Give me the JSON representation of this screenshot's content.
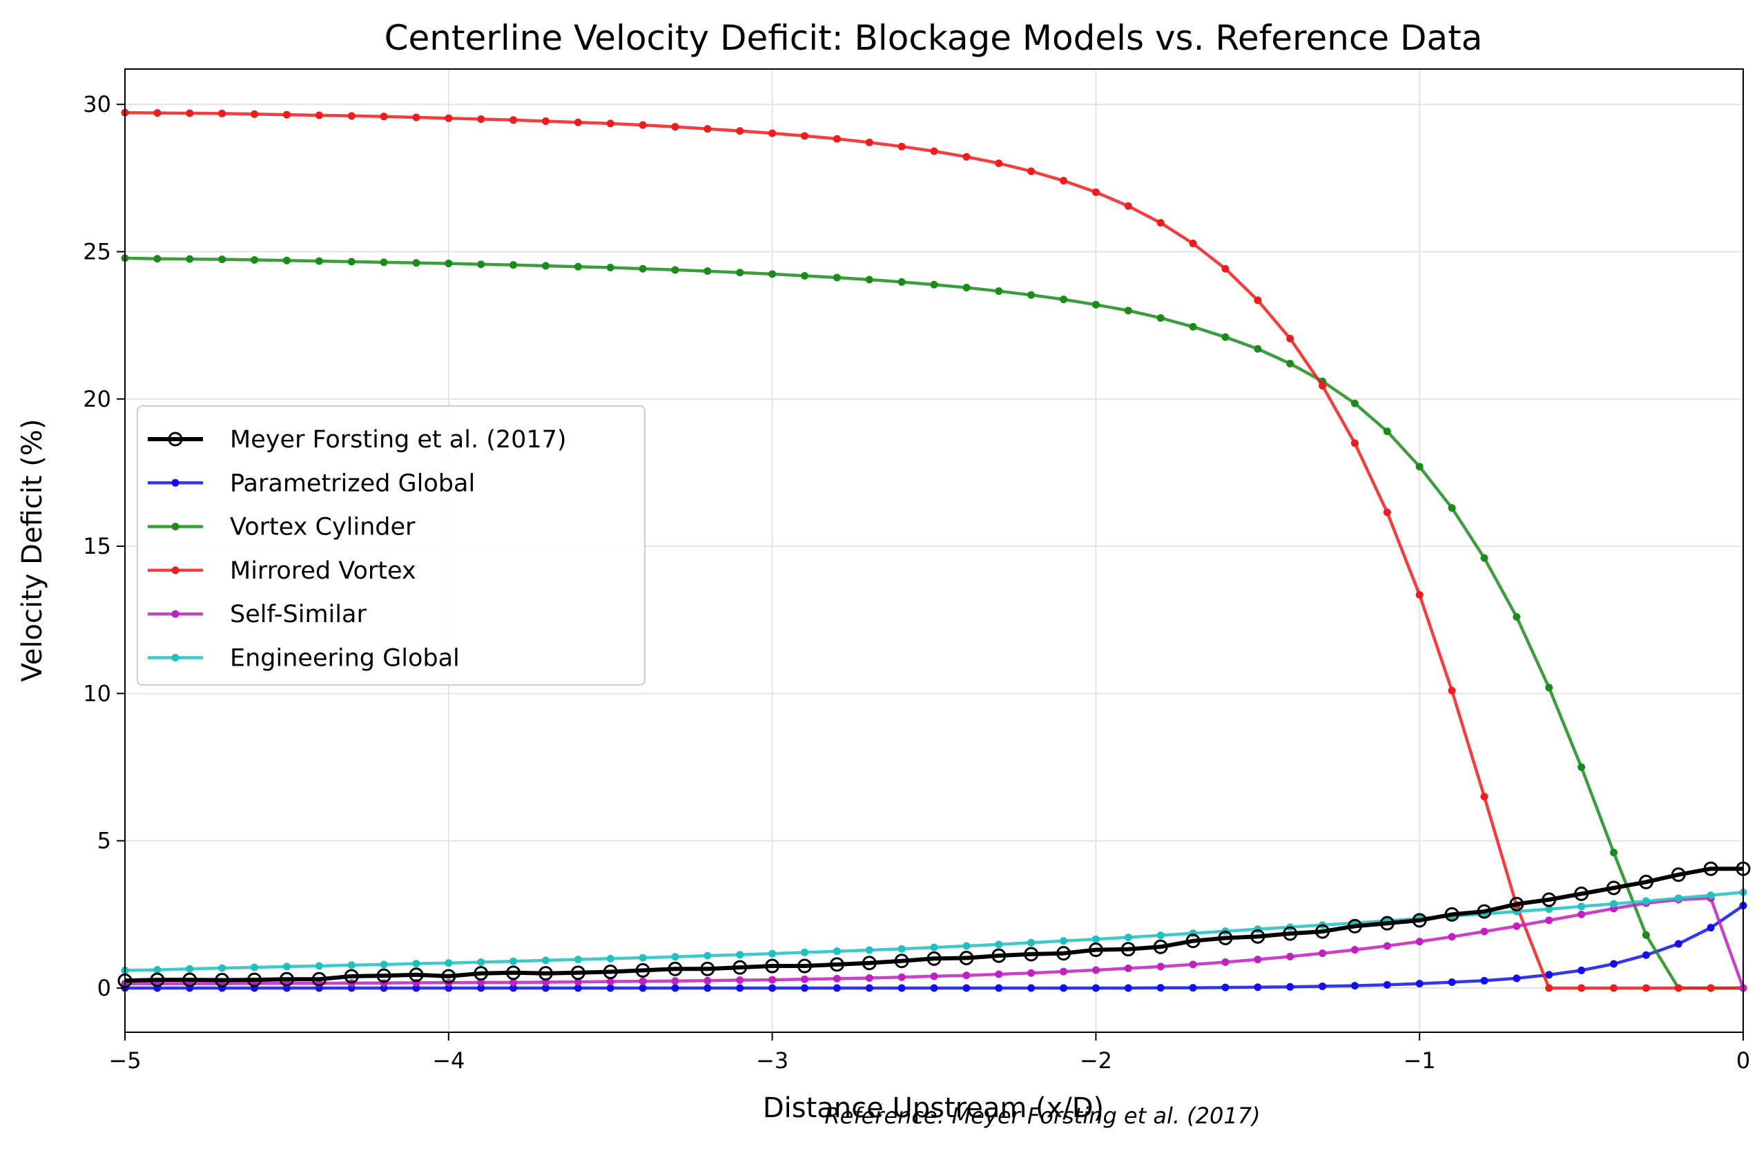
{
  "chart_data": {
    "type": "line",
    "title": "Centerline Velocity Deficit: Blockage Models vs. Reference Data",
    "xlabel": "Distance Upstream (x/D)",
    "ylabel": "Velocity Deficit (%)",
    "xlim": [
      -5,
      0
    ],
    "ylim": [
      -1.5,
      31.2
    ],
    "xticks": [
      -5,
      -4,
      -3,
      -2,
      -1,
      0
    ],
    "xtick_labels": [
      "−5",
      "−4",
      "−3",
      "−2",
      "−1",
      "0"
    ],
    "yticks": [
      0,
      5,
      10,
      15,
      20,
      25,
      30
    ],
    "ytick_labels": [
      "0",
      "5",
      "10",
      "15",
      "20",
      "25",
      "30"
    ],
    "grid": true,
    "legend_position": "center-left",
    "annotation": "Reference: Meyer Forsting et al. (2017)",
    "series": [
      {
        "name": "Meyer Forsting et al. (2017)",
        "color": "#000000",
        "marker": "open-circle",
        "x": [
          -5.0,
          -4.9,
          -4.8,
          -4.7,
          -4.6,
          -4.5,
          -4.4,
          -4.3,
          -4.2,
          -4.1,
          -4.0,
          -3.9,
          -3.8,
          -3.7,
          -3.6,
          -3.5,
          -3.4,
          -3.3,
          -3.2,
          -3.1,
          -3.0,
          -2.9,
          -2.8,
          -2.7,
          -2.6,
          -2.5,
          -2.4,
          -2.3,
          -2.2,
          -2.1,
          -2.0,
          -1.9,
          -1.8,
          -1.7,
          -1.6,
          -1.5,
          -1.4,
          -1.3,
          -1.2,
          -1.1,
          -1.0,
          -0.9,
          -0.8,
          -0.7,
          -0.6,
          -0.5,
          -0.4,
          -0.3,
          -0.2,
          -0.1,
          0.0
        ],
        "y": [
          0.25,
          0.28,
          0.28,
          0.27,
          0.28,
          0.3,
          0.3,
          0.4,
          0.42,
          0.45,
          0.4,
          0.5,
          0.52,
          0.5,
          0.52,
          0.55,
          0.6,
          0.65,
          0.65,
          0.7,
          0.75,
          0.75,
          0.8,
          0.85,
          0.92,
          1.0,
          1.02,
          1.1,
          1.15,
          1.18,
          1.3,
          1.32,
          1.4,
          1.6,
          1.7,
          1.75,
          1.85,
          1.92,
          2.1,
          2.2,
          2.3,
          2.5,
          2.6,
          2.85,
          3.0,
          3.2,
          3.4,
          3.6,
          3.85,
          4.05,
          4.05
        ]
      },
      {
        "name": "Parametrized Global",
        "color": "#1010ee",
        "marker": "dot",
        "x": [
          -5.0,
          -4.9,
          -4.8,
          -4.7,
          -4.6,
          -4.5,
          -4.4,
          -4.3,
          -4.2,
          -4.1,
          -4.0,
          -3.9,
          -3.8,
          -3.7,
          -3.6,
          -3.5,
          -3.4,
          -3.3,
          -3.2,
          -3.1,
          -3.0,
          -2.9,
          -2.8,
          -2.7,
          -2.6,
          -2.5,
          -2.4,
          -2.3,
          -2.2,
          -2.1,
          -2.0,
          -1.9,
          -1.8,
          -1.7,
          -1.6,
          -1.5,
          -1.4,
          -1.3,
          -1.2,
          -1.1,
          -1.0,
          -0.9,
          -0.8,
          -0.7,
          -0.6,
          -0.5,
          -0.4,
          -0.3,
          -0.2,
          -0.1,
          0.0
        ],
        "y": [
          0.0,
          0.0,
          0.0,
          0.0,
          0.0,
          0.0,
          0.0,
          0.0,
          0.0,
          0.0,
          0.0,
          0.0,
          0.0,
          0.0,
          0.0,
          0.0,
          0.0,
          0.0,
          0.0,
          0.0,
          0.0,
          0.0,
          0.0,
          0.0,
          0.0,
          0.0,
          0.0,
          0.0,
          0.0,
          0.0,
          0.0,
          0.0,
          0.01,
          0.01,
          0.02,
          0.03,
          0.04,
          0.06,
          0.08,
          0.11,
          0.15,
          0.2,
          0.25,
          0.33,
          0.45,
          0.6,
          0.82,
          1.12,
          1.5,
          2.05,
          2.8
        ]
      },
      {
        "name": "Vortex Cylinder",
        "color": "#1a8c1a",
        "marker": "dot",
        "x": [
          -5.0,
          -4.9,
          -4.8,
          -4.7,
          -4.6,
          -4.5,
          -4.4,
          -4.3,
          -4.2,
          -4.1,
          -4.0,
          -3.9,
          -3.8,
          -3.7,
          -3.6,
          -3.5,
          -3.4,
          -3.3,
          -3.2,
          -3.1,
          -3.0,
          -2.9,
          -2.8,
          -2.7,
          -2.6,
          -2.5,
          -2.4,
          -2.3,
          -2.2,
          -2.1,
          -2.0,
          -1.9,
          -1.8,
          -1.7,
          -1.6,
          -1.5,
          -1.4,
          -1.3,
          -1.2,
          -1.1,
          -1.0,
          -0.9,
          -0.8,
          -0.7,
          -0.6,
          -0.5,
          -0.4,
          -0.3,
          -0.2,
          -0.1,
          0.0
        ],
        "y": [
          24.78,
          24.76,
          24.75,
          24.74,
          24.72,
          24.7,
          24.68,
          24.66,
          24.64,
          24.62,
          24.6,
          24.57,
          24.55,
          24.52,
          24.49,
          24.46,
          24.42,
          24.38,
          24.34,
          24.29,
          24.24,
          24.18,
          24.12,
          24.05,
          23.97,
          23.88,
          23.78,
          23.66,
          23.53,
          23.38,
          23.2,
          23.0,
          22.75,
          22.45,
          22.1,
          21.7,
          21.2,
          20.6,
          19.85,
          18.9,
          17.7,
          16.3,
          14.6,
          12.6,
          10.2,
          7.5,
          4.6,
          1.8,
          0.0,
          0.0,
          0.0
        ]
      },
      {
        "name": "Mirrored Vortex",
        "color": "#ee1c1c",
        "marker": "dot",
        "x": [
          -5.0,
          -4.9,
          -4.8,
          -4.7,
          -4.6,
          -4.5,
          -4.4,
          -4.3,
          -4.2,
          -4.1,
          -4.0,
          -3.9,
          -3.8,
          -3.7,
          -3.6,
          -3.5,
          -3.4,
          -3.3,
          -3.2,
          -3.1,
          -3.0,
          -2.9,
          -2.8,
          -2.7,
          -2.6,
          -2.5,
          -2.4,
          -2.3,
          -2.2,
          -2.1,
          -2.0,
          -1.9,
          -1.8,
          -1.7,
          -1.6,
          -1.5,
          -1.4,
          -1.3,
          -1.2,
          -1.1,
          -1.0,
          -0.9,
          -0.8,
          -0.7,
          -0.6,
          -0.5,
          -0.4,
          -0.3,
          -0.2,
          -0.1,
          0.0
        ],
        "y": [
          29.72,
          29.71,
          29.7,
          29.69,
          29.67,
          29.65,
          29.63,
          29.61,
          29.59,
          29.56,
          29.53,
          29.5,
          29.47,
          29.43,
          29.39,
          29.35,
          29.3,
          29.24,
          29.17,
          29.1,
          29.02,
          28.93,
          28.83,
          28.71,
          28.57,
          28.41,
          28.22,
          28.0,
          27.73,
          27.41,
          27.02,
          26.55,
          25.98,
          25.28,
          24.42,
          23.35,
          22.05,
          20.45,
          18.5,
          16.15,
          13.35,
          10.1,
          6.5,
          2.8,
          0.0,
          0.0,
          0.0,
          0.0,
          0.0,
          0.0,
          0.0
        ]
      },
      {
        "name": "Self-Similar",
        "color": "#c020c0",
        "marker": "dot",
        "x": [
          -5.0,
          -4.9,
          -4.8,
          -4.7,
          -4.6,
          -4.5,
          -4.4,
          -4.3,
          -4.2,
          -4.1,
          -4.0,
          -3.9,
          -3.8,
          -3.7,
          -3.6,
          -3.5,
          -3.4,
          -3.3,
          -3.2,
          -3.1,
          -3.0,
          -2.9,
          -2.8,
          -2.7,
          -2.6,
          -2.5,
          -2.4,
          -2.3,
          -2.2,
          -2.1,
          -2.0,
          -1.9,
          -1.8,
          -1.7,
          -1.6,
          -1.5,
          -1.4,
          -1.3,
          -1.2,
          -1.1,
          -1.0,
          -0.9,
          -0.8,
          -0.7,
          -0.6,
          -0.5,
          -0.4,
          -0.3,
          -0.2,
          -0.1,
          0.0
        ],
        "y": [
          0.15,
          0.15,
          0.15,
          0.15,
          0.16,
          0.16,
          0.16,
          0.17,
          0.17,
          0.18,
          0.18,
          0.19,
          0.19,
          0.2,
          0.21,
          0.22,
          0.23,
          0.24,
          0.25,
          0.27,
          0.28,
          0.3,
          0.32,
          0.34,
          0.37,
          0.4,
          0.43,
          0.47,
          0.51,
          0.56,
          0.61,
          0.67,
          0.73,
          0.8,
          0.88,
          0.97,
          1.07,
          1.18,
          1.3,
          1.43,
          1.58,
          1.74,
          1.92,
          2.1,
          2.3,
          2.5,
          2.7,
          2.88,
          3.0,
          3.05,
          0.0
        ]
      },
      {
        "name": "Engineering Global",
        "color": "#20c0c0",
        "marker": "dot",
        "x": [
          -5.0,
          -4.9,
          -4.8,
          -4.7,
          -4.6,
          -4.5,
          -4.4,
          -4.3,
          -4.2,
          -4.1,
          -4.0,
          -3.9,
          -3.8,
          -3.7,
          -3.6,
          -3.5,
          -3.4,
          -3.3,
          -3.2,
          -3.1,
          -3.0,
          -2.9,
          -2.8,
          -2.7,
          -2.6,
          -2.5,
          -2.4,
          -2.3,
          -2.2,
          -2.1,
          -2.0,
          -1.9,
          -1.8,
          -1.7,
          -1.6,
          -1.5,
          -1.4,
          -1.3,
          -1.2,
          -1.1,
          -1.0,
          -0.9,
          -0.8,
          -0.7,
          -0.6,
          -0.5,
          -0.4,
          -0.3,
          -0.2,
          -0.1,
          0.0
        ],
        "y": [
          0.6,
          0.62,
          0.65,
          0.68,
          0.7,
          0.73,
          0.75,
          0.78,
          0.8,
          0.83,
          0.85,
          0.88,
          0.91,
          0.94,
          0.97,
          1.0,
          1.03,
          1.06,
          1.1,
          1.13,
          1.17,
          1.21,
          1.25,
          1.29,
          1.33,
          1.38,
          1.43,
          1.48,
          1.54,
          1.6,
          1.66,
          1.72,
          1.79,
          1.86,
          1.93,
          2.0,
          2.07,
          2.14,
          2.21,
          2.28,
          2.36,
          2.44,
          2.52,
          2.6,
          2.68,
          2.77,
          2.86,
          2.95,
          3.05,
          3.15,
          3.25
        ]
      }
    ]
  }
}
